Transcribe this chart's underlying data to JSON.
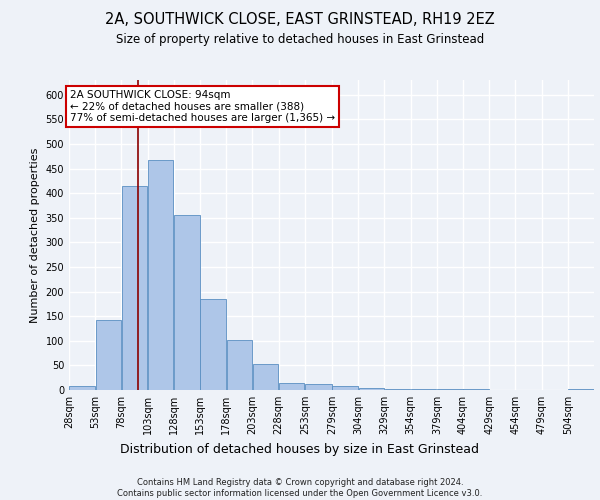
{
  "title_line1": "2A, SOUTHWICK CLOSE, EAST GRINSTEAD, RH19 2EZ",
  "title_line2": "Size of property relative to detached houses in East Grinstead",
  "xlabel": "Distribution of detached houses by size in East Grinstead",
  "ylabel": "Number of detached properties",
  "footer": "Contains HM Land Registry data © Crown copyright and database right 2024.\nContains public sector information licensed under the Open Government Licence v3.0.",
  "bin_edges": [
    28,
    53,
    78,
    103,
    128,
    153,
    178,
    203,
    228,
    253,
    279,
    304,
    329,
    354,
    379,
    404,
    429,
    454,
    479,
    504,
    529
  ],
  "bar_heights": [
    9,
    143,
    415,
    468,
    355,
    185,
    101,
    53,
    15,
    12,
    9,
    5,
    3,
    2,
    3,
    2,
    0,
    0,
    0,
    3
  ],
  "bar_color": "#aec6e8",
  "bar_edge_color": "#5a8fc2",
  "property_size": 94,
  "vline_color": "#8b0000",
  "annotation_text": "2A SOUTHWICK CLOSE: 94sqm\n← 22% of detached houses are smaller (388)\n77% of semi-detached houses are larger (1,365) →",
  "annotation_box_color": "#ffffff",
  "annotation_box_edge": "#cc0000",
  "ylim": [
    0,
    630
  ],
  "yticks": [
    0,
    50,
    100,
    150,
    200,
    250,
    300,
    350,
    400,
    450,
    500,
    550,
    600
  ],
  "bg_color": "#eef2f8",
  "plot_bg_color": "#eef2f8",
  "grid_color": "#ffffff",
  "title1_fontsize": 10.5,
  "title2_fontsize": 8.5,
  "xlabel_fontsize": 9,
  "ylabel_fontsize": 8,
  "tick_fontsize": 7,
  "annot_fontsize": 7.5,
  "footer_fontsize": 6.0
}
